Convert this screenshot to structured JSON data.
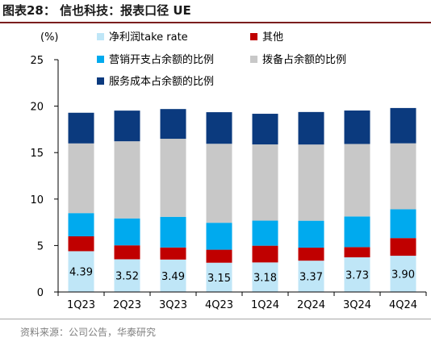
{
  "header": {
    "title": "图表28：  信也科技：报表口径 UE"
  },
  "footer": {
    "source": "资料来源：公司公告，华泰研究"
  },
  "chart_data": {
    "type": "bar",
    "stacked": true,
    "ylabel": "(%)",
    "ylim": [
      0,
      25
    ],
    "yticks": [
      0,
      5,
      10,
      15,
      20,
      25
    ],
    "grid": false,
    "legend_position": "top",
    "categories": [
      "1Q23",
      "2Q23",
      "3Q23",
      "4Q23",
      "1Q24",
      "2Q24",
      "3Q24",
      "4Q24"
    ],
    "series": [
      {
        "name": "净利润take rate",
        "color": "#bfe6f7",
        "values": [
          4.39,
          3.52,
          3.49,
          3.15,
          3.18,
          3.37,
          3.73,
          3.9
        ],
        "show_labels": true
      },
      {
        "name": "其他",
        "color": "#c00000",
        "values": [
          1.6,
          1.5,
          1.3,
          1.4,
          1.8,
          1.4,
          1.1,
          1.9
        ]
      },
      {
        "name": "营销开支占余额的比例",
        "color": "#00aaee",
        "values": [
          2.5,
          2.9,
          3.3,
          2.9,
          2.7,
          2.9,
          3.3,
          3.1
        ]
      },
      {
        "name": "拨备占余额的比例",
        "color": "#c8c8c8",
        "values": [
          7.5,
          8.3,
          8.4,
          8.5,
          8.2,
          8.2,
          7.8,
          7.1
        ]
      },
      {
        "name": "服务成本占余额的比例",
        "color": "#0b3a7e",
        "values": [
          3.3,
          3.3,
          3.2,
          3.4,
          3.3,
          3.5,
          3.6,
          3.8
        ]
      }
    ]
  }
}
